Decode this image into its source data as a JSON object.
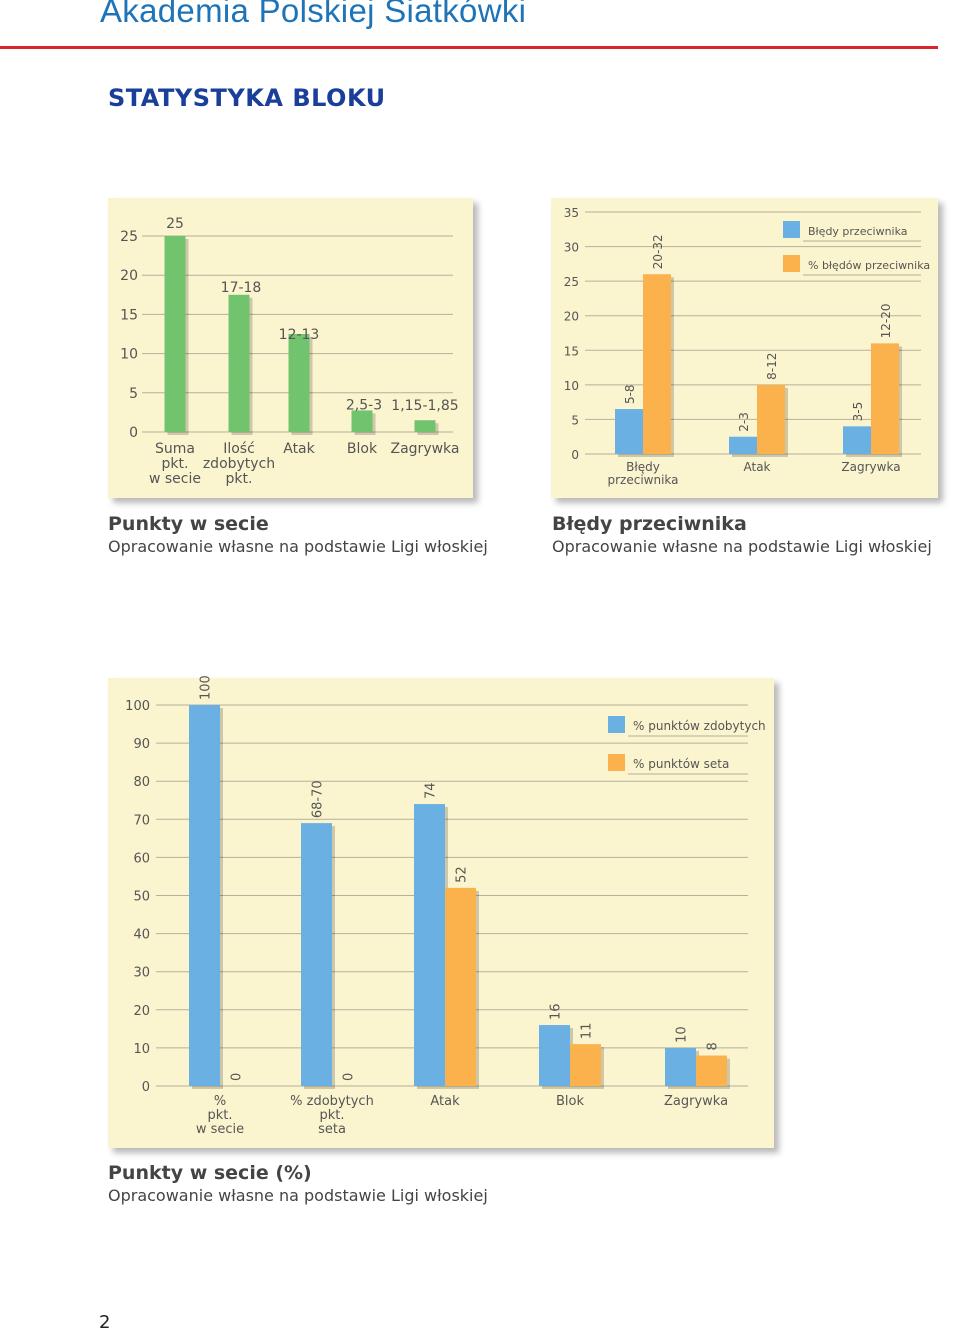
{
  "header": {
    "title": "Akademia Polskiej Siatkówki",
    "section": "STATYSTYKA BLOKU"
  },
  "page_number": "2",
  "colors": {
    "green": "#72c36e",
    "blue": "#6ab0e2",
    "orange": "#fbb24c",
    "panel": "#fbf5cf",
    "rule": "#d9262b",
    "title": "#1f74b8"
  },
  "captions": {
    "chart1": {
      "title": "Punkty w secie",
      "subtitle": "Opracowanie własne na podstawie Ligi włoskiej"
    },
    "chart2": {
      "title": "Błędy przeciwnika",
      "subtitle": "Opracowanie własne na podstawie Ligi włoskiej"
    },
    "chart3": {
      "title": "Punkty w secie (%)",
      "subtitle": "Opracowanie własne na podstawie Ligi włoskiej"
    }
  },
  "chart_data": [
    {
      "type": "bar",
      "categories": [
        "Suma pkt. w secie",
        "Ilość zdobytych pkt.",
        "Atak",
        "Blok",
        "Zagrywka"
      ],
      "category_lines": [
        [
          "Suma",
          "pkt.",
          "w secie"
        ],
        [
          "Ilość",
          "zdobytych",
          "pkt."
        ],
        [
          "Atak"
        ],
        [
          "Blok"
        ],
        [
          "Zagrywka"
        ]
      ],
      "values": [
        25,
        17.5,
        12.5,
        2.75,
        1.5
      ],
      "data_labels": [
        "25",
        "17-18",
        "12-13",
        "2,5-3",
        "1,15-1,85"
      ],
      "yticks": [
        0,
        5,
        10,
        15,
        20,
        25
      ],
      "ylim": [
        0,
        25
      ],
      "color": "#72c36e"
    },
    {
      "type": "bar",
      "categories": [
        "Błędy przeciwnika",
        "Atak",
        "Zagrywka"
      ],
      "category_lines": [
        [
          "Błędy",
          "przeciwnika"
        ],
        [
          "Atak"
        ],
        [
          "Zagrywka"
        ]
      ],
      "series": [
        {
          "name": "Błędy przeciwnika",
          "color": "#6ab0e2",
          "values": [
            6.5,
            2.5,
            4
          ],
          "data_labels": [
            "5-8",
            "2-3",
            "3-5"
          ]
        },
        {
          "name": "% błędów przeciwnika",
          "color": "#fbb24c",
          "values": [
            26,
            10,
            16
          ],
          "data_labels": [
            "20-32",
            "8-12",
            "12-20"
          ]
        }
      ],
      "yticks": [
        0,
        5,
        10,
        15,
        20,
        25,
        30,
        35
      ],
      "ylim": [
        0,
        35
      ],
      "legend": "top-right"
    },
    {
      "type": "bar",
      "categories": [
        "% pkt. w secie",
        "% zdobytych pkt. seta",
        "Atak",
        "Blok",
        "Zagrywka"
      ],
      "category_lines": [
        [
          "%",
          "pkt.",
          "w secie"
        ],
        [
          "% zdobytych",
          "pkt.",
          "seta"
        ],
        [
          "Atak"
        ],
        [
          "Blok"
        ],
        [
          "Zagrywka"
        ]
      ],
      "series": [
        {
          "name": "% punktów zdobytych",
          "color": "#6ab0e2",
          "values": [
            100,
            69,
            74,
            16,
            10
          ],
          "data_labels": [
            "100",
            "68-70",
            "74",
            "16",
            "10"
          ]
        },
        {
          "name": "% punktów seta",
          "color": "#fbb24c",
          "values": [
            0,
            0,
            52,
            11,
            8
          ],
          "data_labels": [
            "0",
            "0",
            "52",
            "11",
            "8"
          ]
        }
      ],
      "yticks": [
        0,
        10,
        20,
        30,
        40,
        50,
        60,
        70,
        80,
        90,
        100
      ],
      "ylim": [
        0,
        100
      ],
      "legend": "top-right"
    }
  ]
}
